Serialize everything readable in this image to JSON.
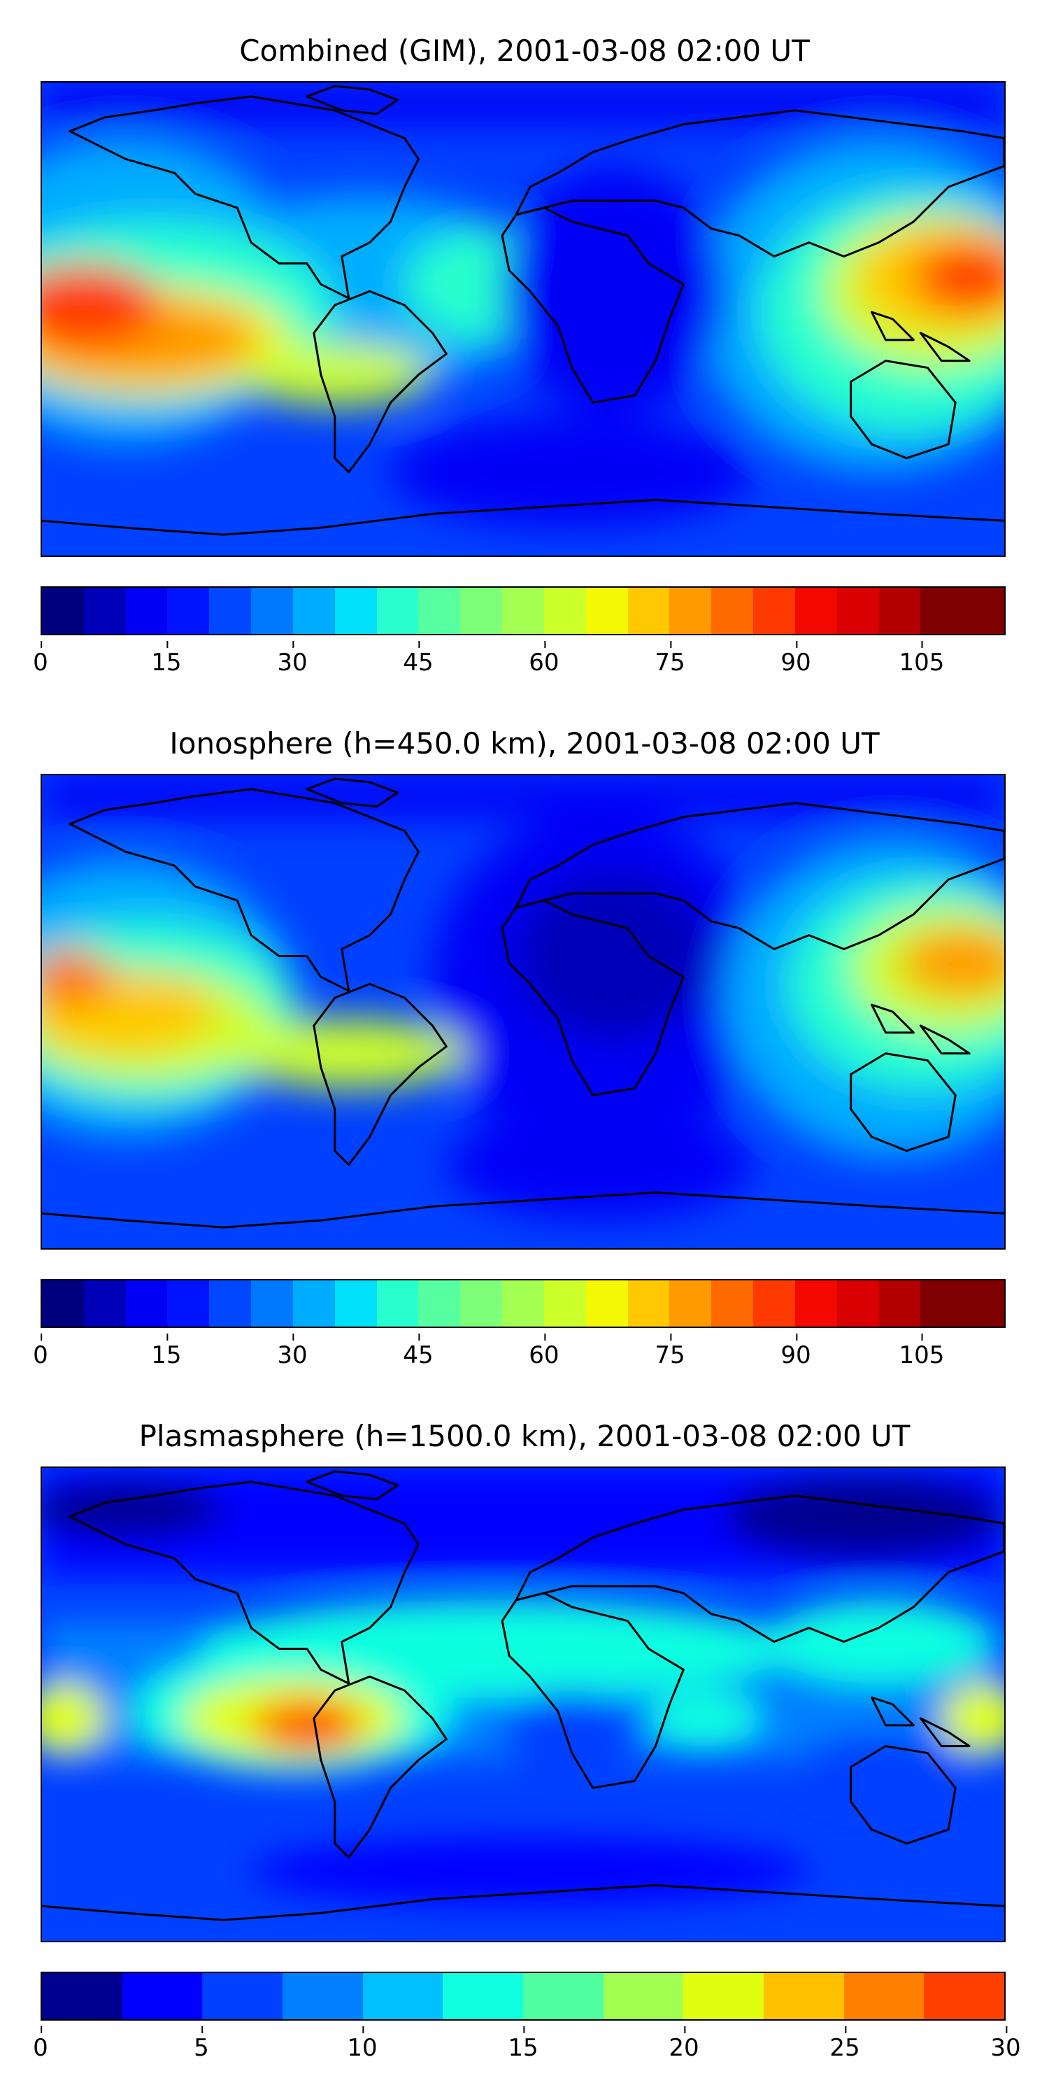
{
  "panels": [
    {
      "title": "Combined (GIM), 2001-03-08 02:00 UT",
      "colorbar": {
        "min": 0,
        "max": 115,
        "step": 5,
        "ticks": [
          "0",
          "15",
          "30",
          "45",
          "60",
          "75",
          "90",
          "105"
        ],
        "tick_values": [
          0,
          15,
          30,
          45,
          60,
          75,
          90,
          105
        ]
      }
    },
    {
      "title": "Ionosphere  (h=450.0 km), 2001-03-08 02:00 UT",
      "colorbar": {
        "min": 0,
        "max": 115,
        "step": 5,
        "ticks": [
          "0",
          "15",
          "30",
          "45",
          "60",
          "75",
          "90",
          "105"
        ],
        "tick_values": [
          0,
          15,
          30,
          45,
          60,
          75,
          90,
          105
        ]
      }
    },
    {
      "title": "Plasmasphere (h=1500.0 km), 2001-03-08 02:00 UT",
      "colorbar": {
        "min": 0,
        "max": 30,
        "step": 2.5,
        "ticks": [
          "0",
          "5",
          "10",
          "15",
          "20",
          "25",
          "30"
        ],
        "tick_values": [
          0,
          5,
          10,
          15,
          20,
          25,
          30
        ]
      }
    }
  ],
  "colors": {
    "jet23": [
      "#00007f",
      "#0000b8",
      "#0000f5",
      "#0014ff",
      "#0048ff",
      "#0078ff",
      "#00acff",
      "#00e0fa",
      "#28ffce",
      "#56ffa0",
      "#7dff7a",
      "#a4ff53",
      "#cdff2a",
      "#f4f802",
      "#ffc800",
      "#ff9a00",
      "#ff6a00",
      "#ff3a00",
      "#f50800",
      "#d80000",
      "#b20000",
      "#7f0000"
    ],
    "jet12": [
      "#00008f",
      "#0000ff",
      "#0040ff",
      "#0080ff",
      "#00c0ff",
      "#10ffe0",
      "#50ffa0",
      "#a0ff50",
      "#e0ff10",
      "#ffc000",
      "#ff8000",
      "#ff4000",
      "#c00000",
      "#800000"
    ],
    "ocean_low": "#0026ff",
    "coastline": "#000000"
  }
}
